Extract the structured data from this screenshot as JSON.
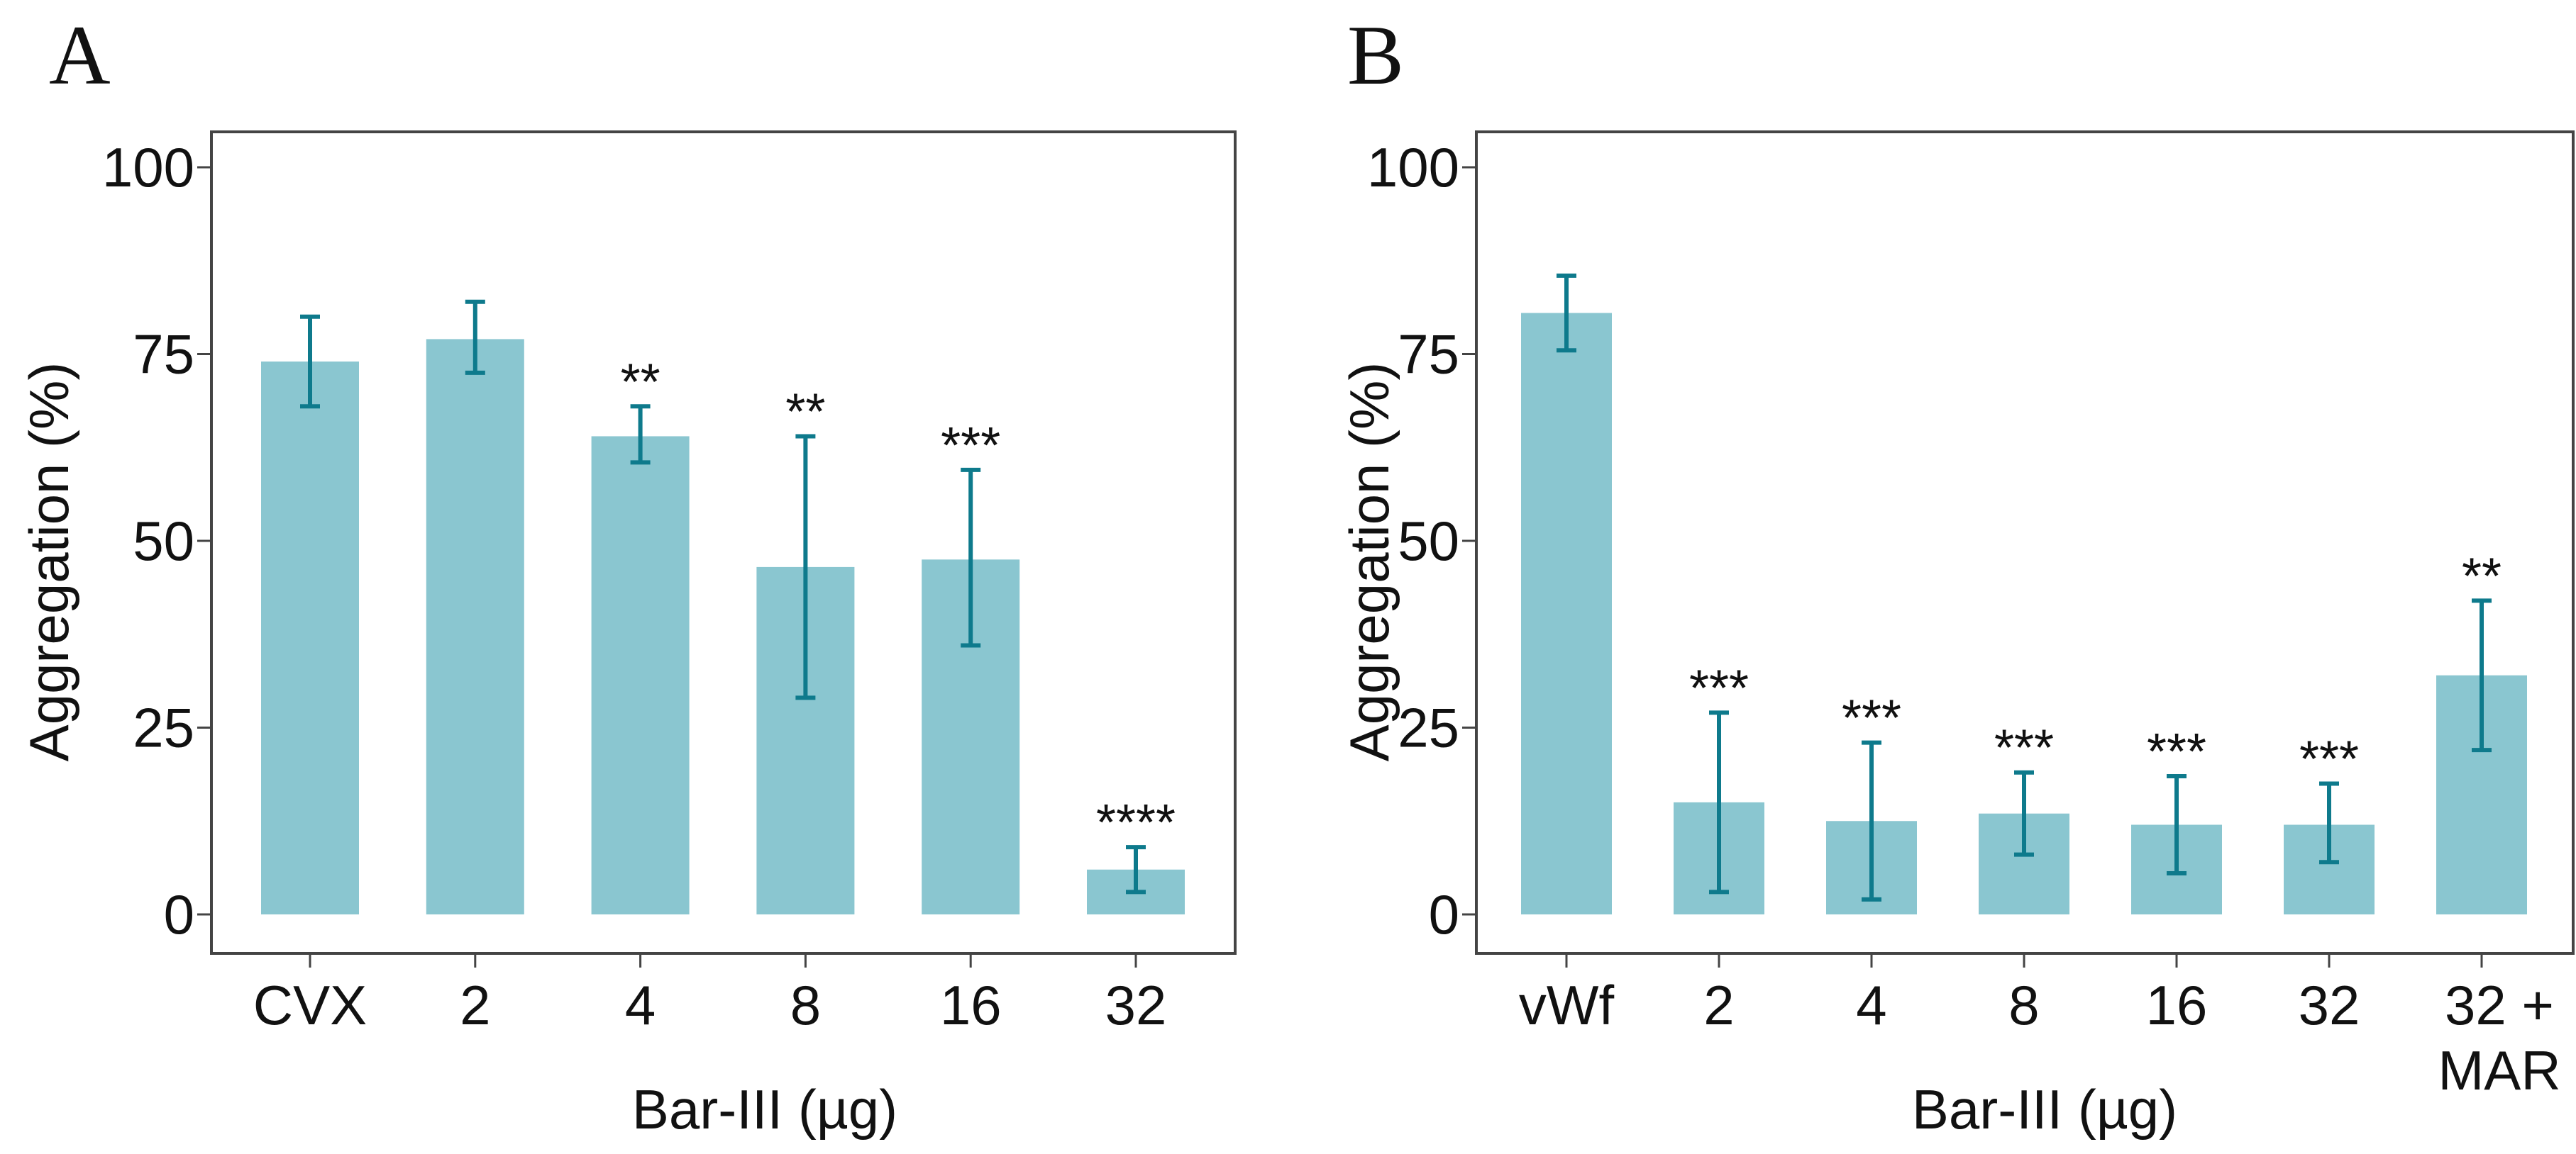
{
  "chart_data": [
    {
      "type": "bar",
      "panel_label": "A",
      "title": "",
      "xlabel": "Bar-III (µg)",
      "ylabel": "Aggregation (%)",
      "ylim": [
        0,
        100
      ],
      "yticks": [
        0,
        25,
        50,
        75,
        100
      ],
      "grid": false,
      "categories": [
        "CVX",
        "2",
        "4",
        "8",
        "16",
        "32"
      ],
      "values": [
        74,
        77,
        64,
        46.5,
        47.5,
        6
      ],
      "error_low": [
        68,
        72.5,
        60.5,
        29,
        36,
        3
      ],
      "error_high": [
        80,
        82,
        68,
        64,
        59.5,
        9
      ],
      "significance": [
        "",
        "",
        "**",
        "**",
        "***",
        "****"
      ],
      "colors": {
        "bar": "#8AC6D0",
        "error": "#0E7A8C"
      }
    },
    {
      "type": "bar",
      "panel_label": "B",
      "title": "",
      "xlabel": "Bar-III (µg)",
      "ylabel": "Aggregation (%)",
      "ylim": [
        0,
        100
      ],
      "yticks": [
        0,
        25,
        50,
        75,
        100
      ],
      "grid": false,
      "categories": [
        "vWf",
        "2",
        "4",
        "8",
        "16",
        "32",
        "32 +\nMAR"
      ],
      "values": [
        80.5,
        15,
        12.5,
        13.5,
        12,
        12,
        32
      ],
      "error_low": [
        75.5,
        3,
        2,
        8,
        5.5,
        7,
        22
      ],
      "error_high": [
        85.5,
        27,
        23,
        19,
        18.5,
        17.5,
        42
      ],
      "significance": [
        "",
        "***",
        "***",
        "***",
        "***",
        "***",
        "**"
      ],
      "colors": {
        "bar": "#8AC6D0",
        "error": "#0E7A8C"
      }
    }
  ]
}
